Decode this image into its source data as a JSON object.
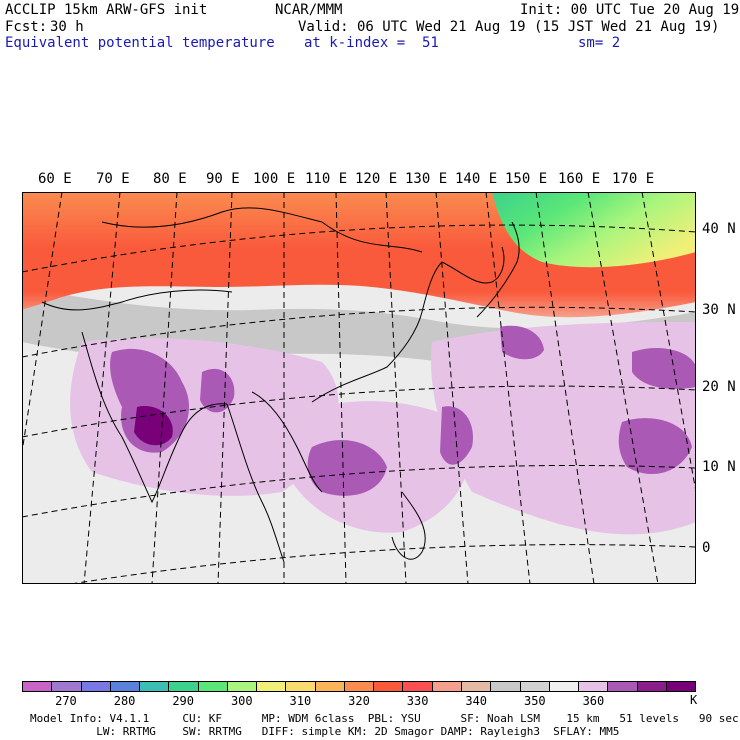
{
  "header": {
    "model": "ACCLIP 15km ARW-GFS init",
    "center": "NCAR/MMM",
    "init": "Init: 00 UTC Tue 20 Aug 19",
    "fcst_label": "Fcst:",
    "fcst_value": "30 h",
    "valid": "Valid: 06 UTC Wed 21 Aug 19 (15 JST Wed 21 Aug 19)",
    "field": "Equivalent potential temperature",
    "level": "at k-index =  51",
    "smooth": "sm= 2"
  },
  "map": {
    "lon_labels": [
      "60 E",
      "70 E",
      "80 E",
      "90 E",
      "100 E",
      "110 E",
      "120 E",
      "130 E",
      "140 E",
      "150 E",
      "160 E",
      "170 E"
    ],
    "lat_labels": [
      "40 N",
      "30 N",
      "20 N",
      "10 N",
      "0"
    ]
  },
  "colorbar": {
    "colors": [
      "#c864c8",
      "#a078d2",
      "#7878e6",
      "#5a82dc",
      "#3cbeb4",
      "#3cd28c",
      "#5ae678",
      "#aaf57d",
      "#f0f078",
      "#fadc6e",
      "#fab45a",
      "#fa8c50",
      "#fa5a3c",
      "#fa5050",
      "#f5a08c",
      "#e6b9a5",
      "#c8c8c8",
      "#d2d2d2",
      "#f0f0f0",
      "#e6c3e6",
      "#aa5ab4",
      "#8c1e8c",
      "#780078"
    ],
    "ticks": [
      "270",
      "280",
      "290",
      "300",
      "310",
      "320",
      "330",
      "340",
      "350",
      "360"
    ],
    "unit": "K"
  },
  "footer": {
    "line1": "Model Info: V4.1.1     CU: KF      MP: WDM 6class  PBL: YSU      SF: Noah LSM    15 km   51 levels   90 sec",
    "line2": "          LW: RRTMG    SW: RRTMG   DIFF: simple KM: 2D Smagor DAMP: Rayleigh3  SFLAY: MM5"
  }
}
